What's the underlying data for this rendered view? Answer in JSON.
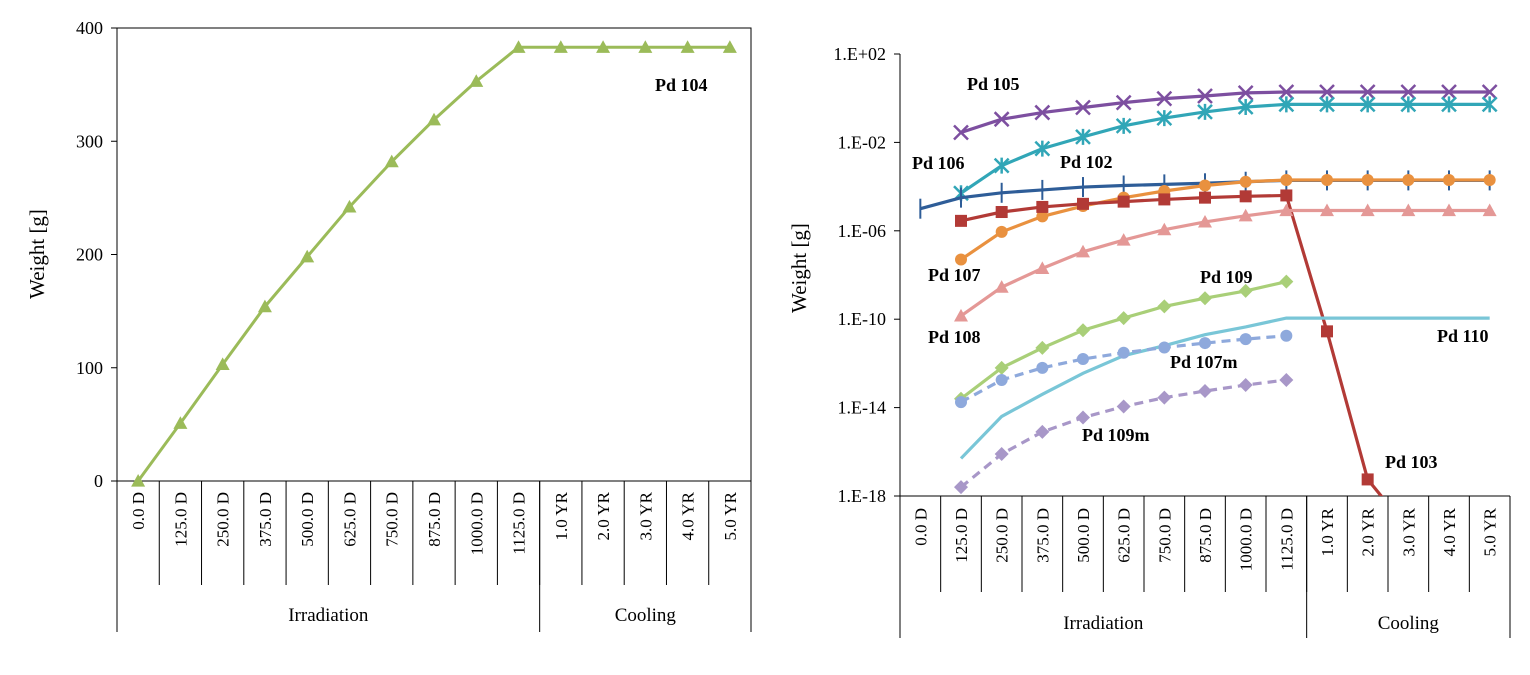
{
  "chart_data": [
    {
      "type": "line",
      "title": "",
      "ylabel": "Weight [g]",
      "xlabel": "",
      "ylim": [
        0,
        400
      ],
      "yticks": [
        "0",
        "100",
        "200",
        "300",
        "400"
      ],
      "categories": [
        "0.0 D",
        "125.0 D",
        "250.0 D",
        "375.0 D",
        "500.0 D",
        "625.0 D",
        "750.0 D",
        "875.0 D",
        "1000.0 D",
        "1125.0 D",
        "1.0 YR",
        "2.0 YR",
        "3.0 YR",
        "4.0 YR",
        "5.0 YR"
      ],
      "groups": [
        {
          "label": "Irradiation",
          "count": 10
        },
        {
          "label": "Cooling",
          "count": 5
        }
      ],
      "series": [
        {
          "name": "Pd 104",
          "color": "#9bbb59",
          "marker": "triangle",
          "dashed": false,
          "values": [
            0,
            51,
            103,
            154,
            198,
            242,
            282,
            319,
            353,
            383,
            383,
            383,
            383,
            383,
            383
          ]
        }
      ]
    },
    {
      "type": "line",
      "title": "",
      "ylabel": "Weight [g]",
      "xlabel": "",
      "yscale": "log",
      "ylim_log10": [
        -18,
        2
      ],
      "yticks": [
        "1.E-18",
        "1.E-14",
        "1.E-10",
        "1.E-06",
        "1.E-02",
        "1.E+02"
      ],
      "categories": [
        "0.0 D",
        "125.0 D",
        "250.0 D",
        "375.0 D",
        "500.0 D",
        "625.0 D",
        "750.0 D",
        "875.0 D",
        "1000.0 D",
        "1125.0 D",
        "1.0 YR",
        "2.0 YR",
        "3.0 YR",
        "4.0 YR",
        "5.0 YR"
      ],
      "groups": [
        {
          "label": "Irradiation",
          "count": 10
        },
        {
          "label": "Cooling",
          "count": 5
        }
      ],
      "series": [
        {
          "name": "Pd 105",
          "color": "#7d4fa0",
          "marker": "x",
          "dashed": false,
          "start": 1,
          "log10": [
            -1.55,
            -0.95,
            -0.65,
            -0.42,
            -0.2,
            -0.02,
            0.1,
            0.24,
            0.28,
            0.28,
            0.28,
            0.28,
            0.28,
            0.28
          ]
        },
        {
          "name": "Pd 106",
          "color": "#31a6b7",
          "marker": "asterisk",
          "dashed": false,
          "start": 1,
          "log10": [
            -4.3,
            -3.05,
            -2.28,
            -1.75,
            -1.25,
            -0.9,
            -0.62,
            -0.4,
            -0.28,
            -0.28,
            -0.28,
            -0.28,
            -0.28,
            -0.28
          ]
        },
        {
          "name": "Pd 102",
          "color": "#2e5d98",
          "marker": "plus",
          "dashed": false,
          "start": 1,
          "log10": [
            -5.0,
            -4.5,
            -4.28,
            -4.15,
            -4.02,
            -3.95,
            -3.9,
            -3.85,
            -3.78,
            -3.72,
            -3.72,
            -3.72,
            -3.72,
            -3.72,
            -3.72
          ],
          "start_override": 0
        },
        {
          "name": "Pd 107",
          "color": "#e9913f",
          "marker": "circle",
          "dashed": false,
          "start": 1,
          "log10": [
            -7.3,
            -6.05,
            -5.35,
            -4.88,
            -4.5,
            -4.2,
            -3.95,
            -3.78,
            -3.7,
            -3.7,
            -3.7,
            -3.7,
            -3.7,
            -3.7
          ]
        },
        {
          "name": "Pd 103",
          "color": "#b23a36",
          "marker": "square",
          "dashed": false,
          "start": 1,
          "log10": [
            -5.55,
            -5.15,
            -4.92,
            -4.78,
            -4.68,
            -4.58,
            -4.5,
            -4.44,
            -4.4,
            -10.55,
            -17.25,
            -19.5
          ]
        },
        {
          "name": "Pd 108",
          "color": "#e49896",
          "marker": "triangle",
          "dashed": false,
          "start": 1,
          "log10": [
            -9.85,
            -8.55,
            -7.7,
            -6.95,
            -6.42,
            -5.95,
            -5.6,
            -5.32,
            -5.08,
            -5.08,
            -5.08,
            -5.08,
            -5.08,
            -5.08
          ]
        },
        {
          "name": "Pd 109",
          "color": "#a9cf78",
          "marker": "diamond",
          "dashed": false,
          "start": 1,
          "log10": [
            -13.6,
            -12.2,
            -11.3,
            -10.5,
            -9.95,
            -9.42,
            -9.05,
            -8.72,
            -8.3
          ]
        },
        {
          "name": "Pd 110",
          "color": "#79c6d7",
          "marker": "none",
          "dashed": false,
          "start": 1,
          "log10": [
            -16.3,
            -14.4,
            -13.4,
            -12.45,
            -11.65,
            -11.2,
            -10.7,
            -10.35,
            -9.95,
            -9.95,
            -9.95,
            -9.95,
            -9.95,
            -9.95
          ]
        },
        {
          "name": "Pd 107m",
          "color": "#8ea9dc",
          "marker": "circle",
          "dashed": true,
          "start": 1,
          "log10": [
            -13.75,
            -12.75,
            -12.2,
            -11.8,
            -11.52,
            -11.28,
            -11.08,
            -10.9,
            -10.75
          ]
        },
        {
          "name": "Pd 109m",
          "color": "#a897c8",
          "marker": "diamond",
          "dashed": true,
          "start": 1,
          "log10": [
            -17.6,
            -16.1,
            -15.1,
            -14.45,
            -13.95,
            -13.55,
            -13.25,
            -12.98,
            -12.75
          ]
        }
      ]
    }
  ]
}
